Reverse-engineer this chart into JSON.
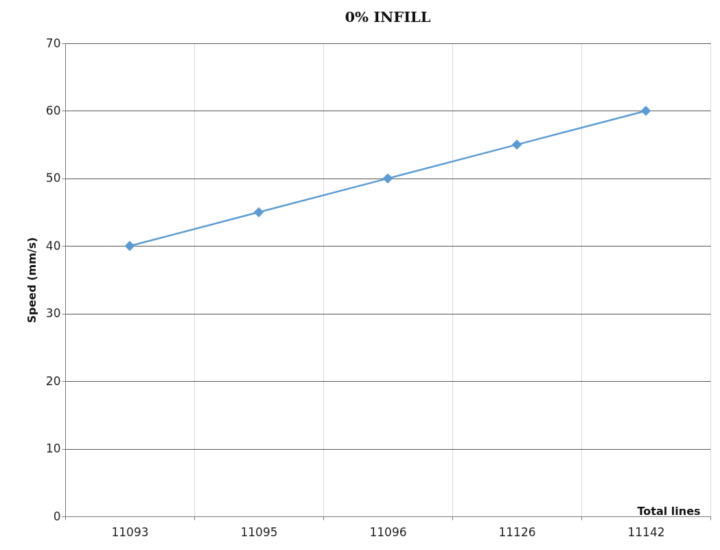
{
  "chart_data": {
    "type": "line",
    "title": "0% INFILL",
    "xlabel": "Total lines",
    "ylabel": "Speed (mm/s)",
    "categories": [
      "11093",
      "11095",
      "11096",
      "11126",
      "11142"
    ],
    "series": [
      {
        "color": "#5b9bd5",
        "values": [
          40,
          45,
          50,
          55,
          60
        ]
      }
    ],
    "ylim": [
      0,
      70
    ],
    "yticks": [
      0,
      10,
      20,
      30,
      40,
      50,
      60,
      70
    ],
    "grid": true,
    "marker": "diamond"
  }
}
